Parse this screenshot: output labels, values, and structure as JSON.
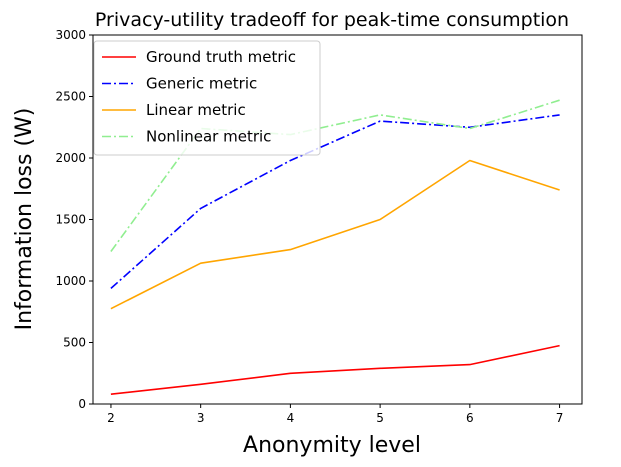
{
  "chart_data": {
    "type": "line",
    "title": "Privacy-utility tradeoff for peak-time consumption",
    "xlabel": "Anonymity level",
    "ylabel": "Information loss (W)",
    "x": [
      2,
      3,
      4,
      5,
      6,
      7
    ],
    "xlim": [
      1.8,
      7.25
    ],
    "ylim": [
      0,
      3000
    ],
    "xticks": [
      2,
      3,
      4,
      5,
      6,
      7
    ],
    "yticks": [
      0,
      500,
      1000,
      1500,
      2000,
      2500,
      3000
    ],
    "grid": false,
    "legend_position": "top-left",
    "series": [
      {
        "name": "Ground truth metric",
        "color": "#ff0000",
        "style": "solid",
        "values": [
          80,
          160,
          250,
          290,
          320,
          475
        ]
      },
      {
        "name": "Generic metric",
        "color": "#0000ff",
        "style": "dashdot",
        "values": [
          940,
          1590,
          1980,
          2300,
          2250,
          2350
        ]
      },
      {
        "name": "Linear metric",
        "color": "#ffa500",
        "style": "solid",
        "values": [
          775,
          1145,
          1255,
          1500,
          1980,
          1740
        ]
      },
      {
        "name": "Nonlinear metric",
        "color": "#90ee90",
        "style": "dashdot",
        "values": [
          1240,
          2240,
          2190,
          2350,
          2240,
          2470
        ]
      }
    ]
  }
}
